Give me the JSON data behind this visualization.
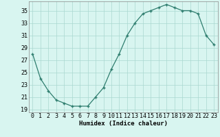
{
  "hours": [
    0,
    1,
    2,
    3,
    4,
    5,
    6,
    7,
    8,
    9,
    10,
    11,
    12,
    13,
    14,
    15,
    16,
    17,
    18,
    19,
    20,
    21,
    22,
    23
  ],
  "humidex": [
    28,
    24,
    22,
    20.5,
    20,
    19.5,
    19.5,
    19.5,
    21,
    22.5,
    25.5,
    28,
    31,
    33,
    34.5,
    35,
    35.5,
    36,
    35.5,
    35,
    35,
    34.5,
    31,
    29.5
  ],
  "line_color": "#2e7d6e",
  "marker": "+",
  "bg_color": "#d8f5f0",
  "grid_color": "#aad8d0",
  "xlabel": "Humidex (Indice chaleur)",
  "xlim": [
    -0.5,
    23.5
  ],
  "ylim": [
    18.5,
    36.5
  ],
  "yticks": [
    19,
    21,
    23,
    25,
    27,
    29,
    31,
    33,
    35
  ],
  "xtick_labels": [
    "0",
    "1",
    "2",
    "3",
    "4",
    "5",
    "6",
    "7",
    "8",
    "9",
    "10",
    "11",
    "12",
    "13",
    "14",
    "15",
    "16",
    "17",
    "18",
    "19",
    "20",
    "21",
    "22",
    "23"
  ],
  "label_fontsize": 6.5,
  "tick_fontsize": 6
}
